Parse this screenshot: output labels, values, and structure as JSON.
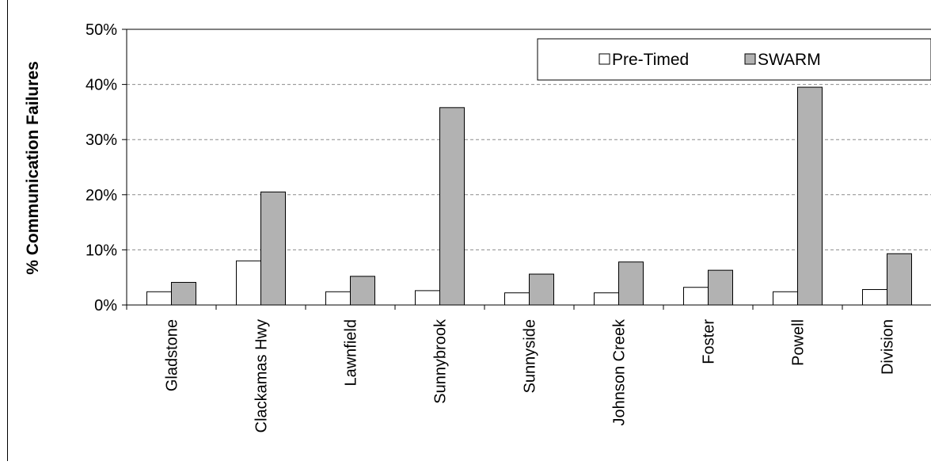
{
  "chart_data": {
    "type": "bar",
    "title": "",
    "xlabel": "",
    "ylabel": "% Communication Failures",
    "ylim": [
      0,
      50
    ],
    "yticks": [
      0,
      10,
      20,
      30,
      40,
      50
    ],
    "ytick_labels": [
      "0%",
      "10%",
      "20%",
      "30%",
      "40%",
      "50%"
    ],
    "grid": "horizontal dashed",
    "legend_position": "top-right",
    "categories": [
      "Gladstone",
      "Clackamas Hwy",
      "Lawnfield",
      "Sunnybrook",
      "Sunnyside",
      "Johnson Creek",
      "Foster",
      "Powell",
      "Division"
    ],
    "series": [
      {
        "name": "Pre-Timed",
        "color": "#ffffff",
        "values": [
          2.4,
          8.0,
          2.4,
          2.6,
          2.2,
          2.2,
          3.2,
          2.4,
          2.8
        ]
      },
      {
        "name": "SWARM",
        "color": "#b2b2b2",
        "values": [
          4.1,
          20.5,
          5.2,
          35.8,
          5.6,
          7.8,
          6.3,
          39.5,
          9.3
        ]
      }
    ]
  }
}
